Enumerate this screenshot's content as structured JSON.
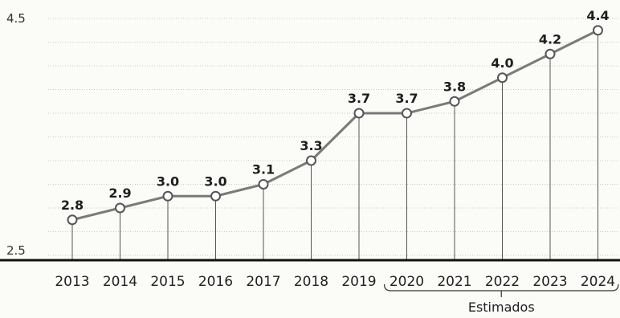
{
  "chart_data": {
    "type": "line",
    "categories": [
      "2013",
      "2014",
      "2015",
      "2016",
      "2017",
      "2018",
      "2019",
      "2020",
      "2021",
      "2022",
      "2023",
      "2024"
    ],
    "values": [
      2.8,
      2.9,
      3.0,
      3.0,
      3.1,
      3.3,
      3.7,
      3.7,
      3.8,
      4.0,
      4.2,
      4.4
    ],
    "data_labels": [
      "2.8",
      "2.9",
      "3.0",
      "3.0",
      "3.1",
      "3.3",
      "3.7",
      "3.7",
      "3.8",
      "4.0",
      "4.2",
      "4.4"
    ],
    "yticks": [
      "2.5",
      "4.5"
    ],
    "ylim": [
      2.5,
      4.5
    ],
    "estimated_range": [
      "2020",
      "2024"
    ],
    "estimated_label": "Estimados",
    "grid": true,
    "line_color": "#7a7a7a",
    "marker_fill": "#ffffff",
    "axis_color": "#111111"
  }
}
